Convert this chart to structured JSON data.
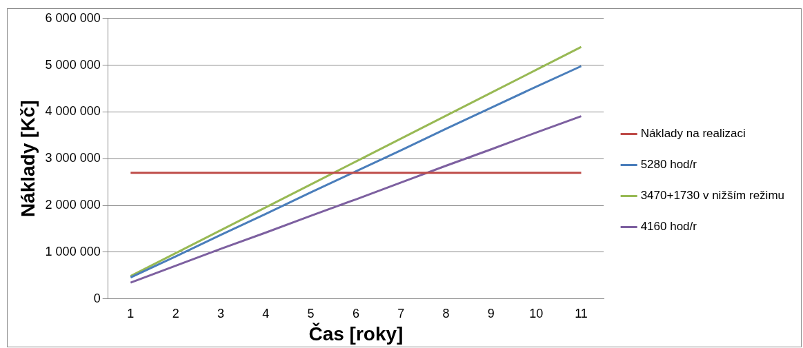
{
  "chart_data": {
    "type": "line",
    "xlabel": "Čas [roky]",
    "ylabel": "Náklady [Kč]",
    "categories": [
      "1",
      "2",
      "3",
      "4",
      "5",
      "6",
      "7",
      "8",
      "9",
      "10",
      "11"
    ],
    "series": [
      {
        "name": "Náklady na realizaci",
        "color": "#be4b48",
        "values": [
          2700000,
          2700000,
          2700000,
          2700000,
          2700000,
          2700000,
          2700000,
          2700000,
          2700000,
          2700000,
          2700000
        ]
      },
      {
        "name": "5280 hod/r",
        "color": "#4a7ebb",
        "values": [
          460000,
          910000,
          1370000,
          1820000,
          2280000,
          2730000,
          3180000,
          3640000,
          4090000,
          4540000,
          4980000
        ]
      },
      {
        "name": "3470+1730 v nižším režimu",
        "color": "#98b954",
        "values": [
          490000,
          980000,
          1470000,
          1960000,
          2450000,
          2940000,
          3430000,
          3920000,
          4410000,
          4900000,
          5390000
        ]
      },
      {
        "name": "4160 hod/r",
        "color": "#7d60a0",
        "values": [
          350000,
          710000,
          1070000,
          1420000,
          1780000,
          2130000,
          2490000,
          2850000,
          3200000,
          3560000,
          3910000
        ]
      }
    ],
    "ylim": [
      0,
      6000000
    ],
    "yticks": [
      0,
      1000000,
      2000000,
      3000000,
      4000000,
      5000000,
      6000000
    ],
    "grid": "y",
    "legend": "right",
    "marker": "none",
    "line_style": "solid"
  }
}
